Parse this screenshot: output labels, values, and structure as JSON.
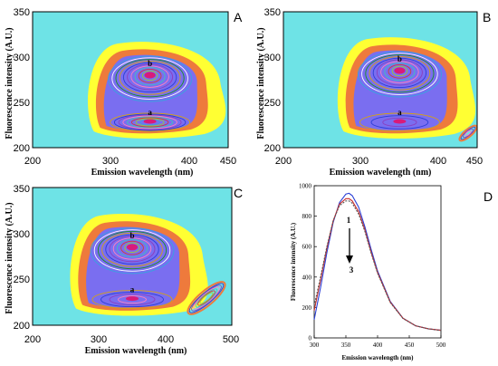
{
  "chart_data": [
    {
      "panel": "A",
      "type": "contour",
      "xlabel": "Emission wavelength (nm)",
      "ylabel": "Fluorescence intensity (A.U.)",
      "xticks": [
        "200",
        "300",
        "400",
        "450"
      ],
      "yticks": [
        "200",
        "250",
        "300",
        "350"
      ],
      "xlim": [
        200,
        450
      ],
      "ylim": [
        200,
        350
      ],
      "peaks": [
        {
          "label": "a",
          "x": 350,
          "y": 230
        },
        {
          "label": "b",
          "x": 350,
          "y": 280
        }
      ]
    },
    {
      "panel": "B",
      "type": "contour",
      "xlabel": "Emission wavelength (nm)",
      "ylabel": "Fluorescence intensity (A.U.)",
      "xticks": [
        "200",
        "300",
        "400",
        "450"
      ],
      "yticks": [
        "200",
        "250",
        "300",
        "350"
      ],
      "xlim": [
        200,
        450
      ],
      "ylim": [
        200,
        350
      ],
      "peaks": [
        {
          "label": "a",
          "x": 350,
          "y": 230
        },
        {
          "label": "b",
          "x": 350,
          "y": 285
        }
      ]
    },
    {
      "panel": "C",
      "type": "contour",
      "xlabel": "Emission wavelength (nm)",
      "ylabel": "Fluorescence intensity (A.U.)",
      "xticks": [
        "200",
        "300",
        "400",
        "500"
      ],
      "yticks": [
        "200",
        "250",
        "300",
        "350"
      ],
      "xlim": [
        200,
        500
      ],
      "ylim": [
        200,
        350
      ],
      "peaks": [
        {
          "label": "a",
          "x": 350,
          "y": 230
        },
        {
          "label": "b",
          "x": 350,
          "y": 285
        }
      ]
    },
    {
      "panel": "D",
      "type": "line",
      "xlabel": "Emission wavelength (nm)",
      "ylabel": "Fluorescence intensity (A.U.)",
      "xticks": [
        "300",
        "350",
        "400",
        "450",
        "500"
      ],
      "yticks": [
        "0",
        "200",
        "400",
        "600",
        "800",
        "1000"
      ],
      "xlim": [
        300,
        500
      ],
      "ylim": [
        0,
        1000
      ],
      "arrow_start_label": "1",
      "arrow_end_label": "3",
      "x": [
        300,
        310,
        320,
        330,
        340,
        350,
        355,
        360,
        370,
        380,
        390,
        400,
        420,
        440,
        460,
        480,
        500
      ],
      "series": [
        {
          "values": [
            120,
            330,
            560,
            760,
            890,
            945,
            950,
            935,
            860,
            730,
            580,
            440,
            240,
            130,
            80,
            60,
            50
          ],
          "color": "#2b3fd6"
        },
        {
          "values": [
            180,
            380,
            590,
            770,
            880,
            915,
            915,
            900,
            830,
            710,
            560,
            430,
            235,
            130,
            80,
            60,
            50
          ],
          "color": "#c72b2b"
        },
        {
          "values": [
            210,
            400,
            600,
            770,
            870,
            900,
            900,
            885,
            815,
            700,
            555,
            425,
            232,
            128,
            80,
            60,
            48
          ],
          "color": "#555555"
        }
      ]
    }
  ],
  "colors": {
    "background": "#6ee3e6",
    "yellow": "#ffff33",
    "orange": "#ee7a3c",
    "blue": "#7a6ef0",
    "peak": "#d81b7a"
  }
}
